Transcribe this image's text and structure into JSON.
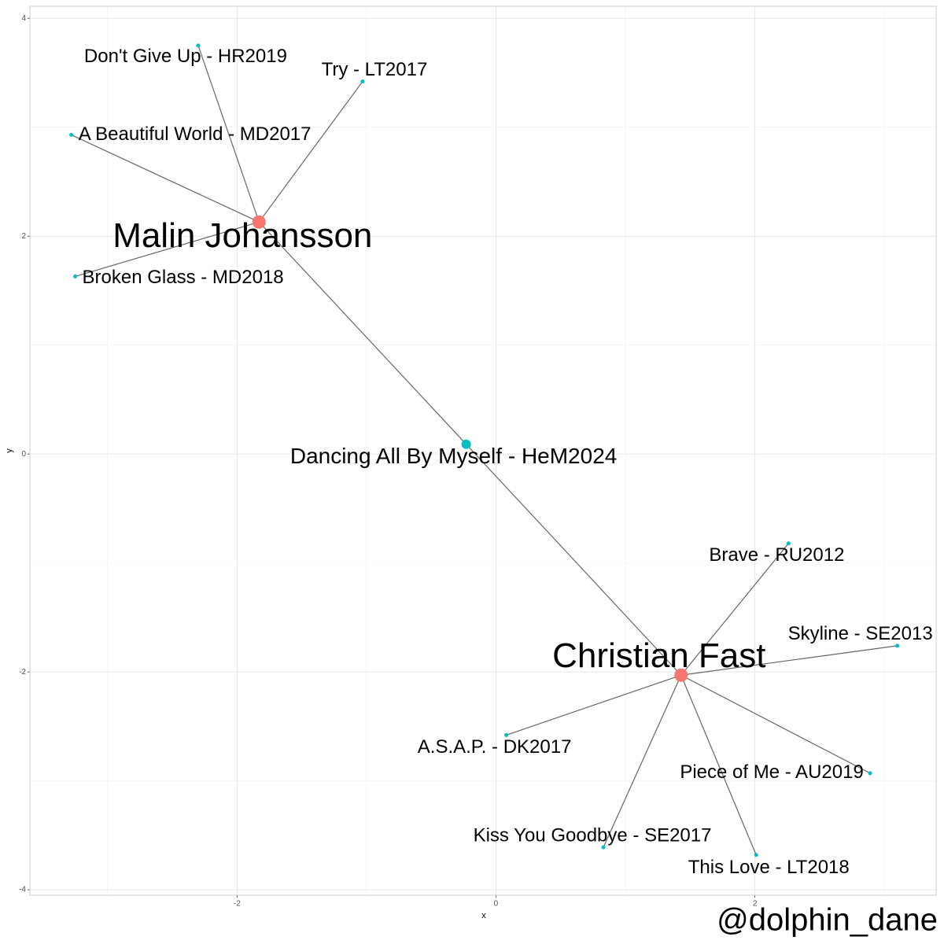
{
  "chart_data": {
    "type": "network",
    "x_label": "x",
    "y_label": "y",
    "xlim": [
      -3.6,
      3.4
    ],
    "ylim": [
      -4.05,
      4.11
    ],
    "xticks": [
      -2,
      0,
      2
    ],
    "yticks": [
      -4,
      -2,
      0,
      2,
      4
    ],
    "grid": true,
    "nodes": [
      {
        "label": "Malin Johansson",
        "x": -1.83,
        "y": 2.13,
        "color": "#F8766D",
        "size": 3
      },
      {
        "label": "Christian Fast",
        "x": 1.43,
        "y": -2.03,
        "color": "#F8766D",
        "size": 3
      },
      {
        "label": "Dancing All By Myself - HeM2024",
        "x": -0.23,
        "y": 0.09,
        "color": "#00BFC4",
        "size": 2
      },
      {
        "label": "Don't Give Up - HR2019",
        "x": -2.3,
        "y": 3.75,
        "color": "#00BFC4",
        "size": 1
      },
      {
        "label": "Try - LT2017",
        "x": -1.03,
        "y": 3.42,
        "color": "#00BFC4",
        "size": 1
      },
      {
        "label": "A Beautiful World - MD2017",
        "x": -3.28,
        "y": 2.93,
        "color": "#00BFC4",
        "size": 1
      },
      {
        "label": "Broken Glass - MD2018",
        "x": -3.25,
        "y": 1.63,
        "color": "#00BFC4",
        "size": 1
      },
      {
        "label": "Brave - RU2012",
        "x": 2.26,
        "y": -0.82,
        "color": "#00BFC4",
        "size": 1
      },
      {
        "label": "Skyline - SE2013",
        "x": 3.1,
        "y": -1.76,
        "color": "#00BFC4",
        "size": 1
      },
      {
        "label": "A.S.A.P. - DK2017",
        "x": 0.08,
        "y": -2.58,
        "color": "#00BFC4",
        "size": 1
      },
      {
        "label": "Piece of Me - AU2019",
        "x": 2.89,
        "y": -2.93,
        "color": "#00BFC4",
        "size": 1
      },
      {
        "label": "Kiss You Goodbye - SE2017",
        "x": 0.83,
        "y": -3.61,
        "color": "#00BFC4",
        "size": 1
      },
      {
        "label": "This Love - LT2018",
        "x": 2.01,
        "y": -3.68,
        "color": "#00BFC4",
        "size": 1
      }
    ],
    "edges": [
      [
        0,
        3
      ],
      [
        0,
        4
      ],
      [
        0,
        5
      ],
      [
        0,
        6
      ],
      [
        0,
        2
      ],
      [
        1,
        2
      ],
      [
        1,
        7
      ],
      [
        1,
        8
      ],
      [
        1,
        9
      ],
      [
        1,
        10
      ],
      [
        1,
        11
      ],
      [
        1,
        12
      ]
    ],
    "caption": "@dolphin_dane"
  }
}
